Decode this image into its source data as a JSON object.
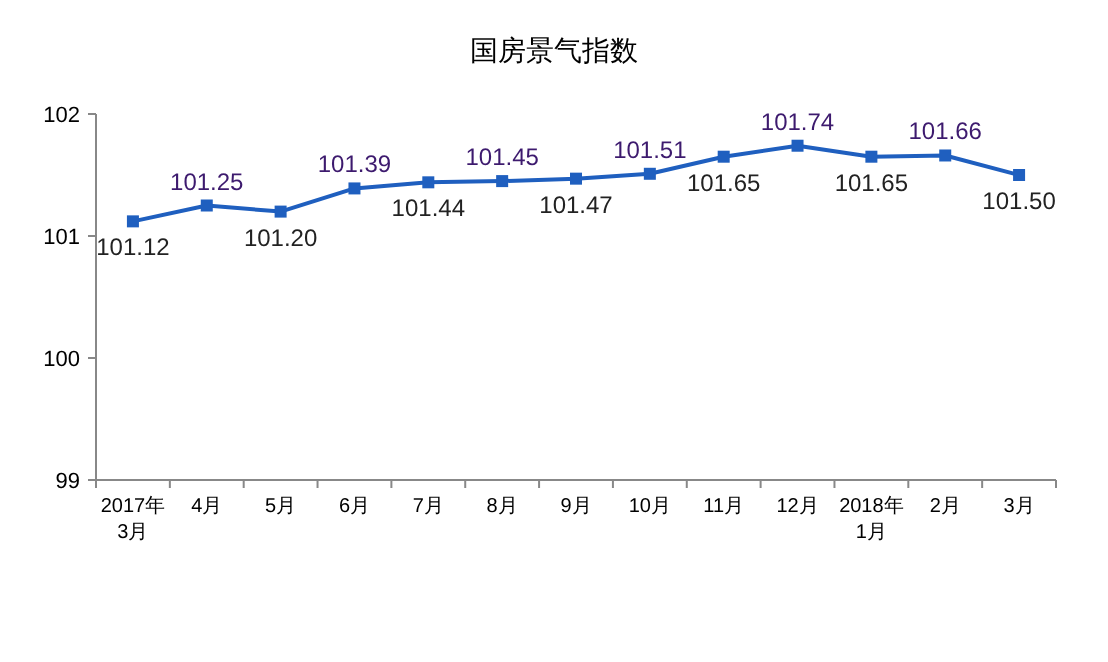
{
  "chart_data": {
    "type": "line",
    "title": "国房景气指数",
    "categories": [
      "2017年\n3月",
      "4月",
      "5月",
      "6月",
      "7月",
      "8月",
      "9月",
      "10月",
      "11月",
      "12月",
      "2018年\n1月",
      "2月",
      "3月"
    ],
    "series": [
      {
        "color": "#1f5fbf",
        "values": [
          101.12,
          101.25,
          101.2,
          101.39,
          101.44,
          101.45,
          101.47,
          101.51,
          101.65,
          101.74,
          101.65,
          101.66,
          101.5
        ],
        "value_labels": [
          "101.12",
          "101.25",
          "101.20",
          "101.39",
          "101.44",
          "101.45",
          "101.47",
          "101.51",
          "101.65",
          "101.74",
          "101.65",
          "101.66",
          "101.50"
        ]
      }
    ],
    "ylim": [
      99,
      102
    ],
    "yticks": [
      99,
      100,
      101,
      102
    ],
    "marker": "square",
    "grid": false
  }
}
